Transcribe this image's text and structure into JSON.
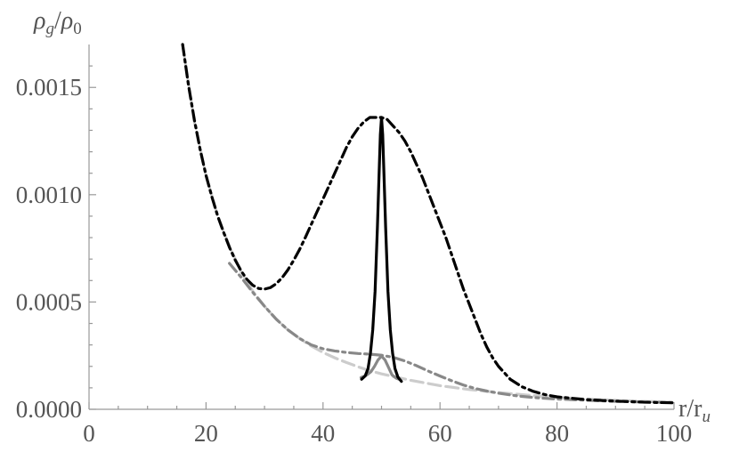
{
  "chart_data": {
    "type": "line",
    "title": "",
    "xlabel": "r/r",
    "xlabel_sub": "u",
    "ylabel_num": "ρ",
    "ylabel_num_sub": "g",
    "ylabel_slash": "/",
    "ylabel_den": "ρ",
    "ylabel_den_sub": "0",
    "xlim": [
      0,
      100
    ],
    "ylim": [
      0,
      0.0017
    ],
    "xticks": [
      "0",
      "20",
      "40",
      "60",
      "80",
      "100"
    ],
    "yticks": [
      "0.0000",
      "0.0005",
      "0.0010",
      "0.0015"
    ],
    "xtick_values": [
      0,
      20,
      40,
      60,
      80,
      100
    ],
    "ytick_values": [
      0,
      0.0005,
      0.001,
      0.0015
    ],
    "grid": false,
    "legend": "none",
    "series": [
      {
        "style": "dashed",
        "color": "#cccccc",
        "x": [
          16,
          18,
          20,
          22,
          24,
          26,
          28,
          30,
          32,
          34,
          36,
          38,
          40,
          42,
          44,
          46,
          48,
          50,
          55,
          60,
          65,
          70,
          75,
          80,
          85,
          90,
          95,
          100
        ],
        "y": [
          0.0017,
          0.00134,
          0.00109,
          0.0009,
          0.00076,
          0.00064,
          0.00055,
          0.00048,
          0.00042,
          0.00037,
          0.00033,
          0.000295,
          0.000265,
          0.00024,
          0.000218,
          0.000198,
          0.00018,
          0.000165,
          0.000135,
          0.00011,
          9.2e-05,
          7.8e-05,
          6.6e-05,
          5.6e-05,
          4.8e-05,
          4.2e-05,
          3.7e-05,
          3.3e-05
        ]
      },
      {
        "style": "dash-dot",
        "color": "#888888",
        "x": [
          24,
          26,
          28,
          30,
          32,
          34,
          36,
          38,
          40,
          42,
          44,
          46,
          48,
          50,
          52,
          54,
          56,
          58,
          60,
          62,
          64,
          66,
          68,
          70,
          72,
          74,
          76,
          78,
          80,
          85,
          90,
          95,
          100
        ],
        "y": [
          0.00068,
          0.000615,
          0.000545,
          0.00048,
          0.00042,
          0.00037,
          0.00033,
          0.0003,
          0.000282,
          0.000272,
          0.000265,
          0.00026,
          0.000257,
          0.000252,
          0.000242,
          0.000225,
          0.000203,
          0.000178,
          0.000155,
          0.000133,
          0.000113,
          9.7e-05,
          8.5e-05,
          7.5e-05,
          6.7e-05,
          6e-05,
          5.5e-05,
          5.1e-05,
          4.8e-05,
          4.2e-05,
          3.7e-05,
          3.4e-05,
          3.1e-05
        ]
      },
      {
        "style": "solid",
        "color": "#888888",
        "x": [
          46.5,
          47.5,
          48.2,
          48.8,
          49.4,
          50.0,
          50.6,
          51.2,
          51.8,
          52.5,
          53.0
        ],
        "y": [
          0.000148,
          0.00016,
          0.000175,
          0.0002,
          0.00023,
          0.000248,
          0.00023,
          0.000195,
          0.00016,
          0.000145,
          0.00014
        ]
      },
      {
        "style": "solid",
        "color": "#000000",
        "x": [
          46.6,
          47.2,
          47.7,
          48.1,
          48.5,
          48.9,
          49.3,
          49.6,
          49.8,
          50.0,
          50.2,
          50.4,
          50.7,
          51.1,
          51.5,
          51.9,
          52.3,
          52.8,
          53.4
        ],
        "y": [
          0.00014,
          0.000155,
          0.00019,
          0.00026,
          0.00037,
          0.00055,
          0.00085,
          0.00111,
          0.00128,
          0.00136,
          0.00128,
          0.00111,
          0.00085,
          0.00055,
          0.00037,
          0.00026,
          0.00019,
          0.00015,
          0.00013
        ]
      },
      {
        "style": "dash-dot",
        "color": "#000000",
        "x": [
          16,
          17,
          18,
          19,
          20,
          21,
          22,
          23,
          24,
          25,
          26,
          27,
          28,
          29,
          30,
          31,
          32,
          33,
          34,
          35,
          36,
          37,
          38,
          39,
          40,
          41,
          42,
          43,
          44,
          45,
          46,
          47,
          48,
          49,
          50,
          51,
          52,
          53,
          54,
          55,
          56,
          57,
          58,
          59,
          60,
          61,
          62,
          63,
          64,
          65,
          66,
          67,
          68,
          69,
          70,
          72,
          74,
          76,
          78,
          80,
          85,
          90,
          95,
          100
        ],
        "y": [
          0.0017,
          0.00151,
          0.00135,
          0.00121,
          0.00109,
          0.00099,
          0.0009,
          0.000825,
          0.000755,
          0.000695,
          0.000645,
          0.000605,
          0.000578,
          0.000563,
          0.00056,
          0.000567,
          0.000585,
          0.000613,
          0.00065,
          0.000695,
          0.000745,
          0.000802,
          0.000862,
          0.000922,
          0.00098,
          0.00104,
          0.0011,
          0.00116,
          0.00122,
          0.00127,
          0.00131,
          0.00134,
          0.00136,
          0.00136,
          0.00136,
          0.00135,
          0.00132,
          0.00129,
          0.00125,
          0.0012,
          0.00114,
          0.00108,
          0.00101,
          0.00094,
          0.00087,
          0.0008,
          0.00072,
          0.00064,
          0.00056,
          0.00049,
          0.00042,
          0.00035,
          0.00029,
          0.00024,
          0.0002,
          0.00014,
          0.000105,
          8.3e-05,
          6.8e-05,
          5.8e-05,
          4.5e-05,
          3.8e-05,
          3.3e-05,
          3e-05
        ]
      }
    ]
  }
}
